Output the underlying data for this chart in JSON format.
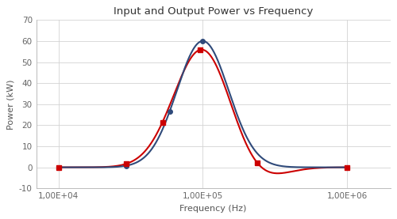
{
  "title": "Input and Output Power vs Frequency",
  "xlabel": "Frequency (Hz)",
  "ylabel": "Power (kW)",
  "ylim": [
    -10,
    70
  ],
  "yticks": [
    -10,
    0,
    10,
    20,
    30,
    40,
    50,
    60,
    70
  ],
  "xtick_positions": [
    10000.0,
    100000.0,
    1000000.0
  ],
  "xtick_labels": [
    "1,00E+04",
    "1,00E+05",
    "1,00E+06"
  ],
  "line1_color": "#2f4a7a",
  "line2_color": "#cc0000",
  "background_color": "#ffffff",
  "grid_color": "#d3d3d3",
  "peak_freq_log": 5.0,
  "peak1_power": 60,
  "peak2_power": 57,
  "sigma1_log": 0.18,
  "sigma2_log": 0.2,
  "red_trough_log": 5.35,
  "red_trough_amp": -7.5,
  "red_trough_sigma": 0.18,
  "blue_markers_log": [
    4.0,
    4.47,
    4.77,
    5.0,
    6.0
  ],
  "red_markers_log": [
    4.0,
    4.47,
    4.72,
    4.98,
    5.38,
    6.0
  ]
}
